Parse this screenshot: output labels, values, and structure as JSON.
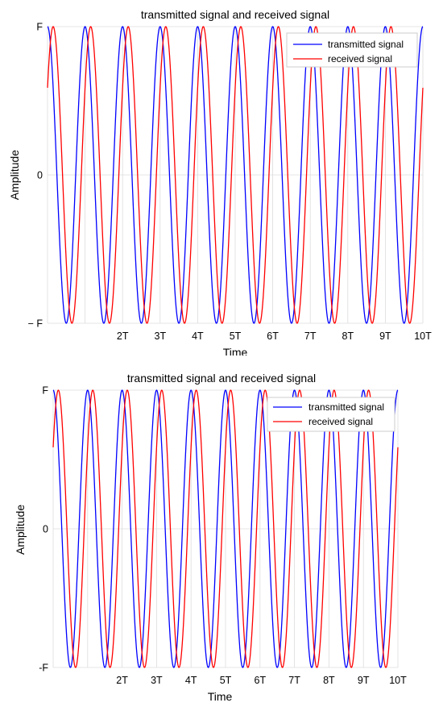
{
  "chart_data": [
    {
      "type": "line",
      "title": "transmitted signal and received signal",
      "xlabel": "Time",
      "ylabel": "Amplitude",
      "x_unit": "T",
      "xlim": [
        0,
        10
      ],
      "ylim": [
        -1,
        1
      ],
      "xtick_values": [
        2,
        3,
        4,
        5,
        6,
        7,
        8,
        9,
        10
      ],
      "xtick_labels": [
        "2T",
        "3T",
        "4T",
        "5T",
        "6T",
        "7T",
        "8T",
        "9T",
        "10T"
      ],
      "ytick_values": [
        -1,
        0,
        1
      ],
      "ytick_labels": [
        "− F",
        "0",
        "F"
      ],
      "grid": true,
      "legend_position": "top-right",
      "series": [
        {
          "name": "transmitted signal",
          "color": "#0000ff",
          "function": "cos",
          "amplitude": 1,
          "cycles_per_T": 1,
          "delay_T": 0
        },
        {
          "name": "received signal",
          "color": "#ff0000",
          "function": "cos",
          "amplitude": 1,
          "cycles_per_T": 1,
          "delay_T": 0.15
        }
      ]
    },
    {
      "type": "line",
      "title": "transmitted signal and received signal",
      "xlabel": "Time",
      "ylabel": "Amplitude",
      "x_unit": "T",
      "xlim": [
        0,
        10
      ],
      "ylim": [
        -1,
        1
      ],
      "xtick_values": [
        2,
        3,
        4,
        5,
        6,
        7,
        8,
        9,
        10
      ],
      "xtick_labels": [
        "2T",
        "3T",
        "4T",
        "5T",
        "6T",
        "7T",
        "8T",
        "9T",
        "10T"
      ],
      "ytick_values": [
        -1,
        0,
        1
      ],
      "ytick_labels": [
        "-F",
        "0",
        "F"
      ],
      "grid": true,
      "legend_position": "top-right",
      "series": [
        {
          "name": "transmitted signal",
          "color": "#0000ff",
          "function": "cos",
          "amplitude": 1,
          "cycles_per_T": 1,
          "delay_T": 0
        },
        {
          "name": "received signal",
          "color": "#ff0000",
          "function": "cos",
          "amplitude": 1,
          "cycles_per_T": 1,
          "delay_T": 0.15
        }
      ]
    }
  ]
}
